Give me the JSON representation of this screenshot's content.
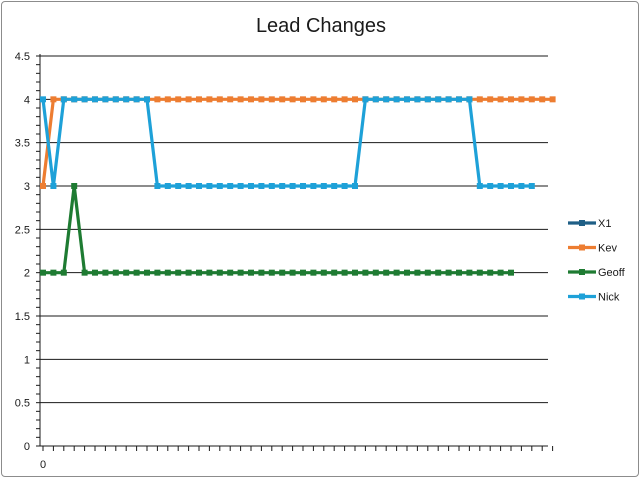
{
  "chart_data": {
    "type": "line",
    "title": "Lead Changes",
    "xlabel": "",
    "ylabel": "",
    "ylim": [
      0,
      4.5
    ],
    "y_ticks": [
      "0",
      "0.5",
      "1",
      "1.5",
      "2",
      "2.5",
      "3",
      "3.5",
      "4",
      "4.5"
    ],
    "x_tick_labels": [
      "0"
    ],
    "x_count": 50,
    "grid": true,
    "legend_position": "right",
    "series": [
      {
        "name": "X1",
        "color": "#1f5f86",
        "values": []
      },
      {
        "name": "Kev",
        "color": "#ed7d31",
        "values": [
          3,
          4,
          4,
          4,
          4,
          4,
          4,
          4,
          4,
          4,
          4,
          4,
          4,
          4,
          4,
          4,
          4,
          4,
          4,
          4,
          4,
          4,
          4,
          4,
          4,
          4,
          4,
          4,
          4,
          4,
          4,
          4,
          4,
          4,
          4,
          4,
          4,
          4,
          4,
          4,
          4,
          4,
          4,
          4,
          4,
          4,
          4,
          4,
          4,
          4
        ]
      },
      {
        "name": "Geoff",
        "color": "#1e7b32",
        "values": [
          2,
          2,
          2,
          3,
          2,
          2,
          2,
          2,
          2,
          2,
          2,
          2,
          2,
          2,
          2,
          2,
          2,
          2,
          2,
          2,
          2,
          2,
          2,
          2,
          2,
          2,
          2,
          2,
          2,
          2,
          2,
          2,
          2,
          2,
          2,
          2,
          2,
          2,
          2,
          2,
          2,
          2,
          2,
          2,
          2,
          2,
          null,
          null,
          null,
          null
        ]
      },
      {
        "name": "Nick",
        "color": "#1ea1d8",
        "values": [
          4,
          3,
          4,
          4,
          4,
          4,
          4,
          4,
          4,
          4,
          4,
          3,
          3,
          3,
          3,
          3,
          3,
          3,
          3,
          3,
          3,
          3,
          3,
          3,
          3,
          3,
          3,
          3,
          3,
          3,
          3,
          4,
          4,
          4,
          4,
          4,
          4,
          4,
          4,
          4,
          4,
          4,
          3,
          3,
          3,
          3,
          3,
          3,
          null,
          null
        ]
      }
    ]
  }
}
